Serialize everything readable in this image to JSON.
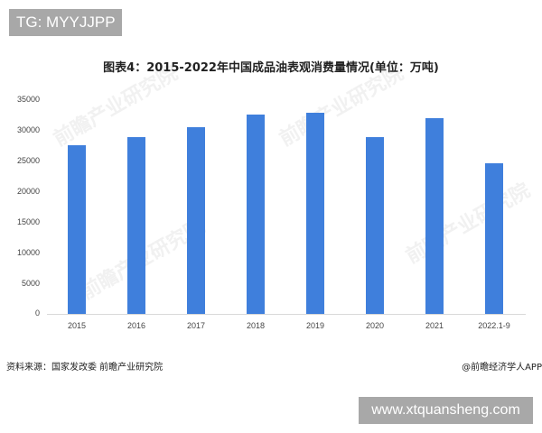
{
  "badge_top": "TG: MYYJJPP",
  "badge_bottom": "www.xtquansheng.com",
  "title": "图表4：2015-2022年中国成品油表观消费量情况(单位：万吨)",
  "source": "资料来源：国家发改委 前瞻产业研究院",
  "credit": "@前瞻经济学人APP",
  "watermark": "前瞻产业研究院",
  "y_ticks": [
    "35000",
    "30000",
    "25000",
    "20000",
    "15000",
    "10000",
    "5000",
    "0"
  ],
  "x_labels": [
    "2015",
    "2016",
    "2017",
    "2018",
    "2019",
    "2020",
    "2021",
    "2022.1-9"
  ],
  "bar_color": "#3f7fdc",
  "chart_data": {
    "type": "bar",
    "title": "图表4：2015-2022年中国成品油表观消费量情况(单位：万吨)",
    "categories": [
      "2015",
      "2016",
      "2017",
      "2018",
      "2019",
      "2020",
      "2021",
      "2022.1-9"
    ],
    "values": [
      27600,
      28950,
      30600,
      32600,
      32900,
      28950,
      32000,
      24700
    ],
    "xlabel": "",
    "ylabel": "万吨",
    "ylim": [
      0,
      35000
    ],
    "yticks": [
      0,
      5000,
      10000,
      15000,
      20000,
      25000,
      30000,
      35000
    ],
    "grid": false,
    "legend": null,
    "source": "资料来源：国家发改委 前瞻产业研究院"
  }
}
